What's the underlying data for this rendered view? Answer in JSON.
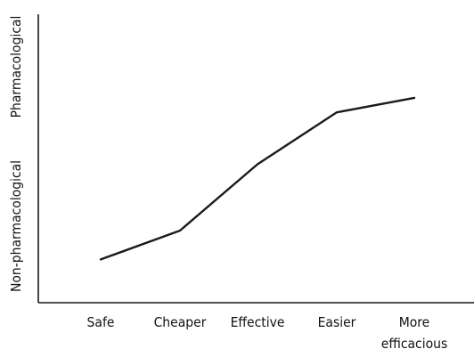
{
  "chart_data": {
    "type": "line",
    "title": "",
    "xlabel": "",
    "ylabel": "",
    "categories": [
      "Safe",
      "Cheaper",
      "Effective",
      "Easier",
      "More\nefficacious"
    ],
    "category_lines": [
      [
        "Safe"
      ],
      [
        "Cheaper"
      ],
      [
        "Effective"
      ],
      [
        "Easier"
      ],
      [
        "More",
        "efficacious"
      ]
    ],
    "y_axis_labels": {
      "lower": "Non-pharmacological",
      "upper": "Pharmacological"
    },
    "series": [
      {
        "values": [
          0.15,
          0.25,
          0.48,
          0.66,
          0.71
        ]
      }
    ],
    "ylim": [
      0,
      1
    ],
    "grid": false,
    "legend": "none"
  }
}
